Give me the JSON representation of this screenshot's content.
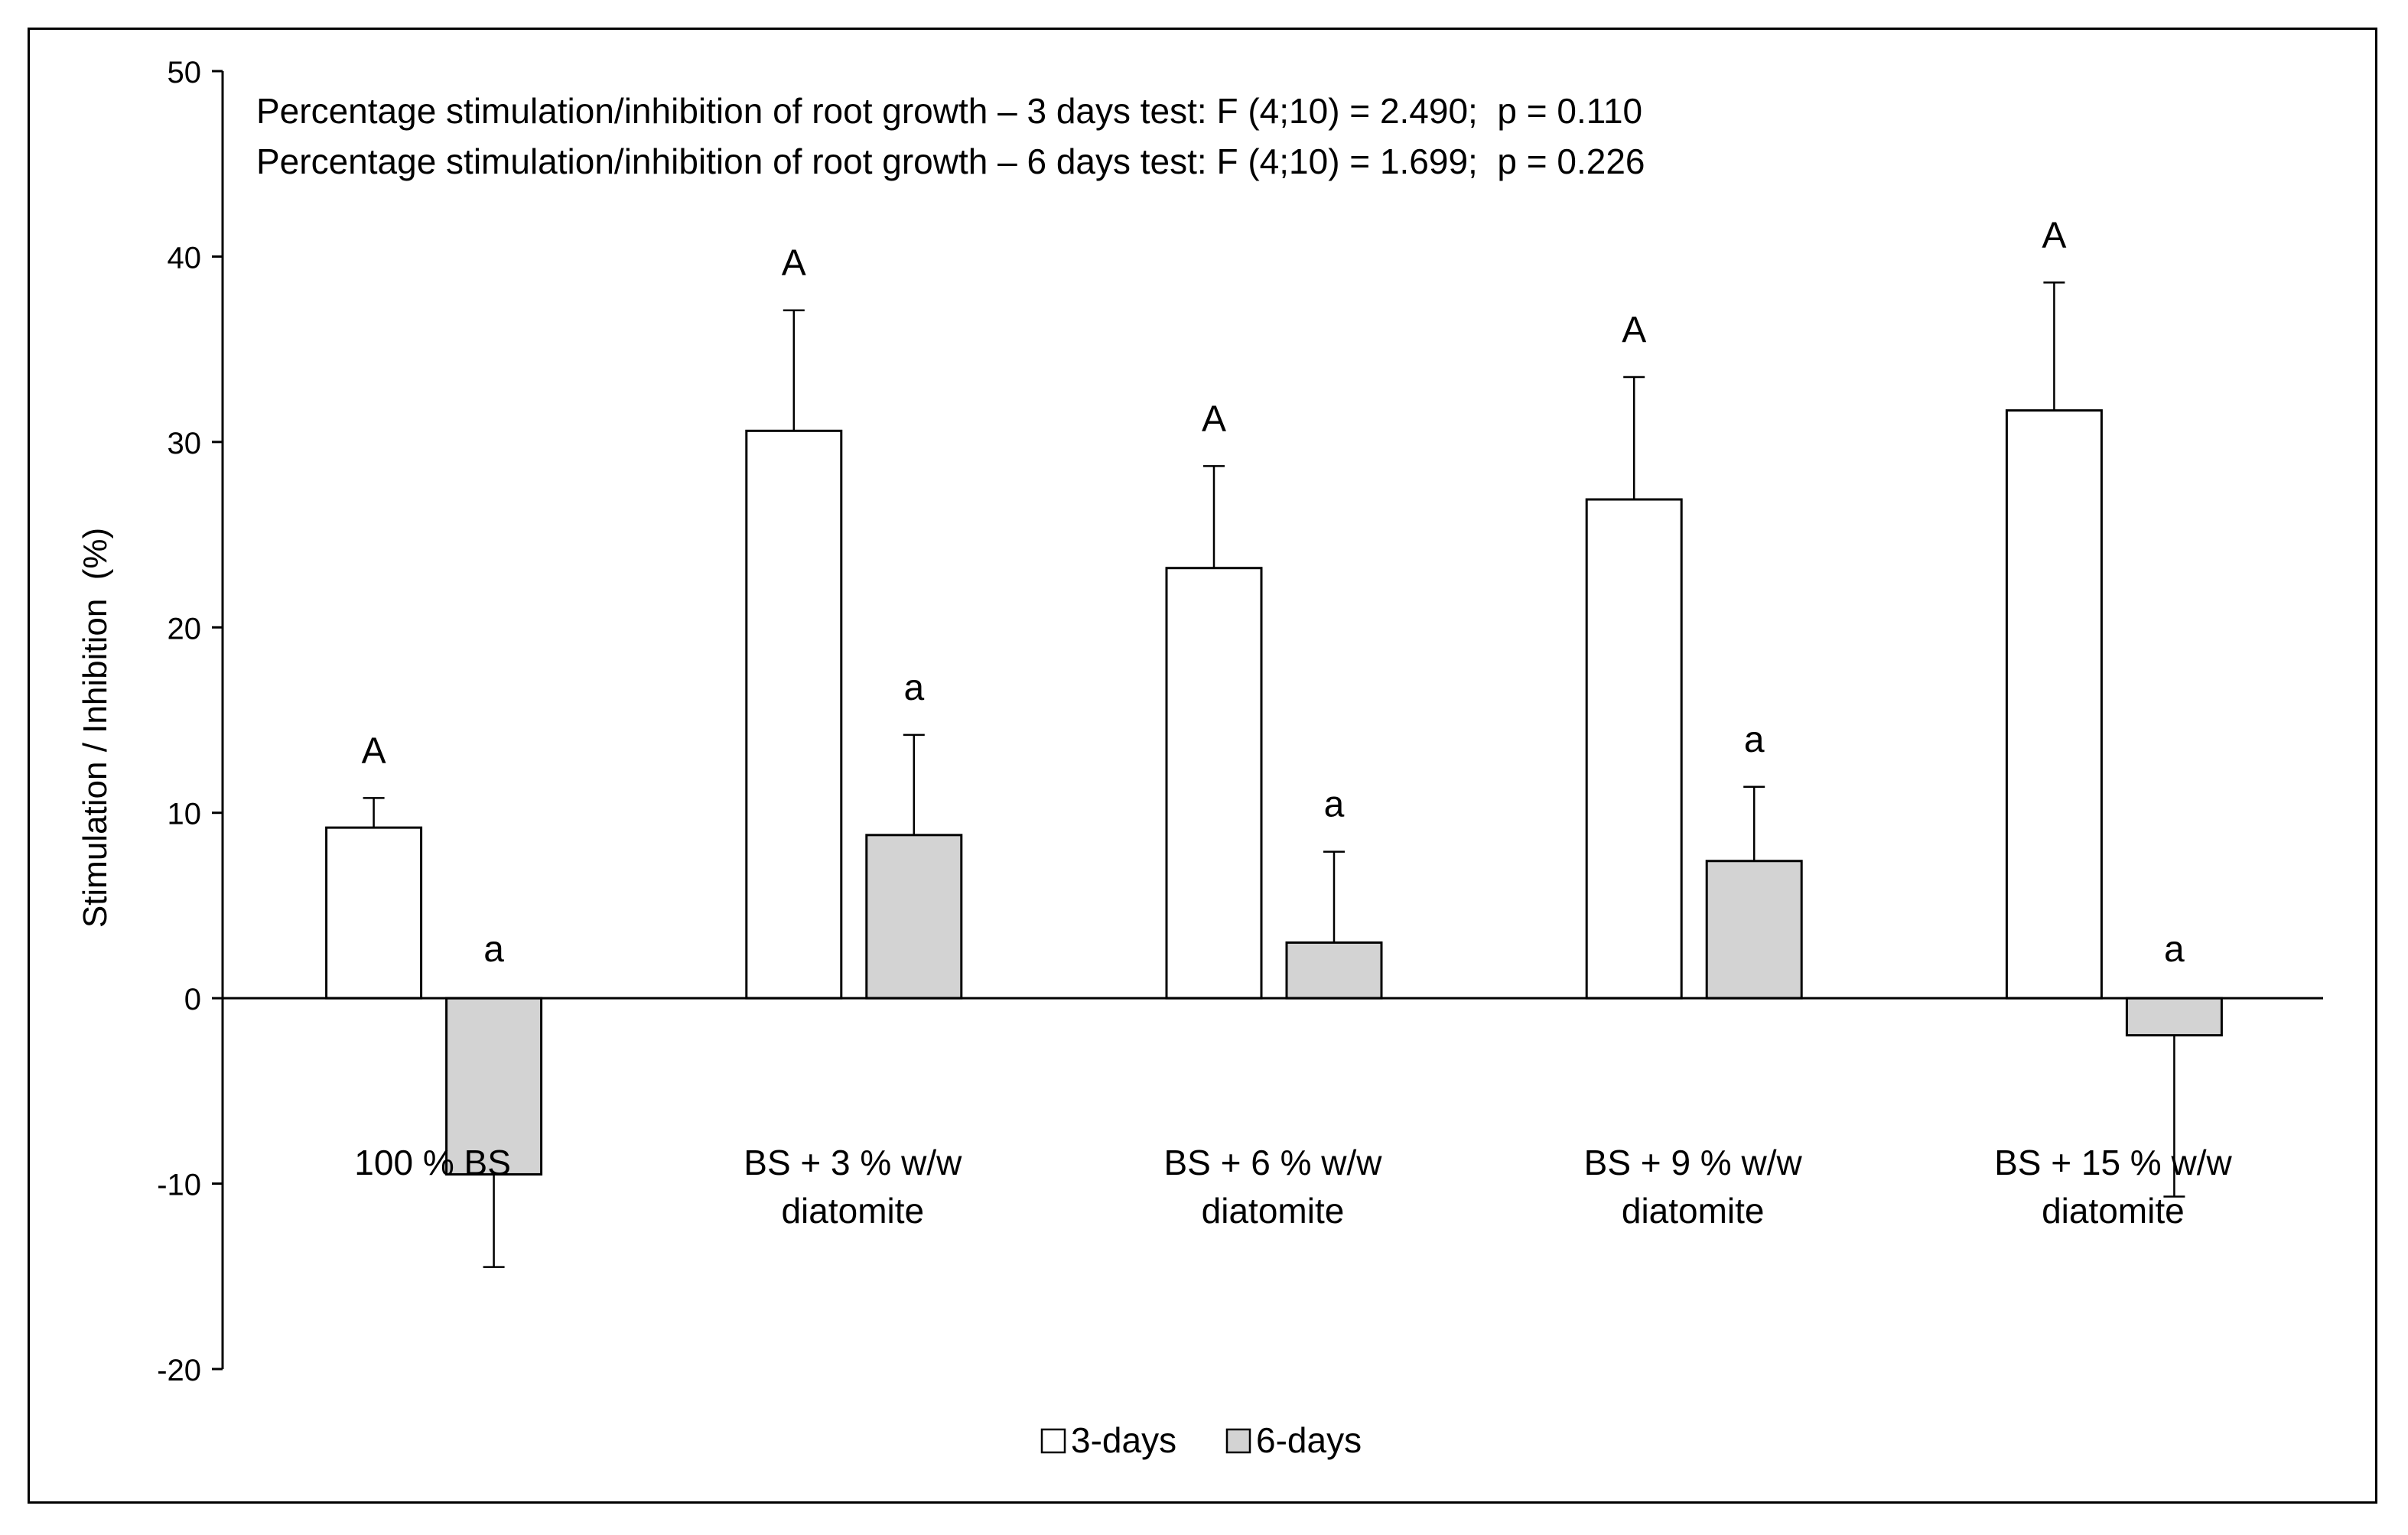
{
  "chart_data": {
    "type": "bar",
    "title": "",
    "ylabel": "Stimulation / Inhibition  (%)",
    "xlabel": "",
    "ylim": [
      -20,
      50
    ],
    "yticks": [
      -20,
      -10,
      0,
      10,
      20,
      30,
      40,
      50
    ],
    "ytick_labels": [
      "-20",
      "-10",
      "0",
      "10",
      "20",
      "30",
      "40",
      "50"
    ],
    "grid": false,
    "legend_position": "bottom-center",
    "categories": [
      [
        "100 % BS"
      ],
      [
        "BS + 3 % w/w",
        "diatomite"
      ],
      [
        "BS + 6 % w/w",
        "diatomite"
      ],
      [
        "BS + 9 % w/w",
        "diatomite"
      ],
      [
        "BS + 15 % w/w",
        "diatomite"
      ]
    ],
    "series": [
      {
        "name": "3-days",
        "color": "#ffffff",
        "values": [
          9.2,
          30.6,
          23.2,
          26.9,
          31.7
        ],
        "errors": [
          1.6,
          6.5,
          5.5,
          6.6,
          6.9
        ],
        "letters": [
          "A",
          "A",
          "A",
          "A",
          "A"
        ]
      },
      {
        "name": "6-days",
        "color": "#d3d3d3",
        "values": [
          -9.5,
          8.8,
          3.0,
          7.4,
          -2.0
        ],
        "errors": [
          5.0,
          5.4,
          4.9,
          4.0,
          8.7
        ],
        "letters": [
          "a",
          "a",
          "a",
          "a",
          "a"
        ]
      }
    ],
    "annotations": [
      "Percentage stimulation/inhibition of root growth – 3 days test: F (4;10) = 2.490;  p = 0.110",
      "Percentage stimulation/inhibition of root growth – 6 days test: F (4;10) = 1.699;  p = 0.226"
    ]
  }
}
